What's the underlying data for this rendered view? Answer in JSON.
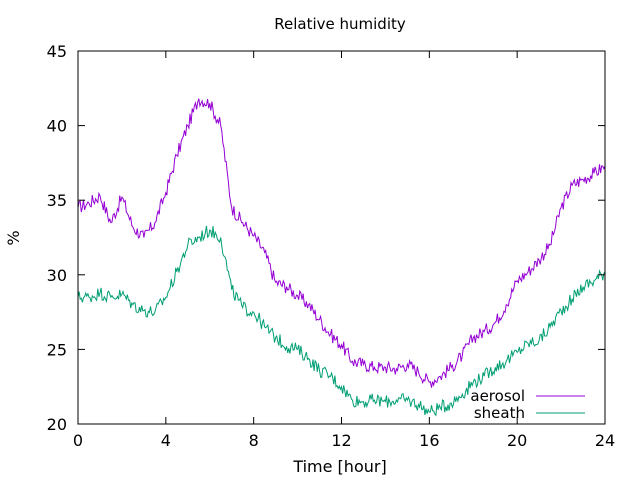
{
  "chart_data": {
    "type": "line",
    "title": "Relative humidity",
    "xlabel": "Time [hour]",
    "ylabel": "%",
    "xlim": [
      0,
      24
    ],
    "ylim": [
      20,
      45
    ],
    "xticks": [
      "0",
      "4",
      "8",
      "12",
      "16",
      "20",
      "24"
    ],
    "xtick_values": [
      0,
      4,
      8,
      12,
      16,
      20,
      24
    ],
    "yticks": [
      "20",
      "25",
      "30",
      "35",
      "40",
      "45"
    ],
    "ytick_values": [
      20,
      25,
      30,
      35,
      40,
      45
    ],
    "grid": false,
    "legend_position": "bottom-right",
    "x": [
      0,
      0.5,
      1,
      1.5,
      2,
      2.5,
      3,
      3.5,
      4,
      4.5,
      5,
      5.5,
      6,
      6.5,
      7,
      7.5,
      8,
      8.5,
      9,
      9.5,
      10,
      10.5,
      11,
      11.5,
      12,
      12.5,
      13,
      13.5,
      14,
      14.5,
      15,
      15.5,
      16,
      16.5,
      17,
      17.5,
      18,
      18.5,
      19,
      19.5,
      20,
      20.5,
      21,
      21.5,
      22,
      22.5,
      23,
      23.5,
      24
    ],
    "series": [
      {
        "name": "aerosol",
        "color": "#9400d3",
        "values": [
          34.5,
          34.8,
          35.3,
          33.5,
          35.2,
          33.2,
          32.5,
          33.5,
          35.5,
          38,
          40,
          41.8,
          41.5,
          40,
          34.5,
          33.5,
          32.6,
          31.5,
          29.5,
          29.2,
          28.6,
          28,
          27,
          26,
          25.3,
          24.2,
          24.0,
          23.8,
          23.8,
          23.7,
          24,
          23.5,
          22.8,
          23.2,
          23.8,
          24.6,
          25.8,
          26.2,
          26.8,
          28,
          29.6,
          30.2,
          31,
          32,
          34.5,
          36,
          36.4,
          36.8,
          37.3
        ]
      },
      {
        "name": "sheath",
        "color": "#009e73",
        "values": [
          28.5,
          28.5,
          28.8,
          28.5,
          28.7,
          28,
          27.6,
          27.5,
          28.5,
          30.2,
          32,
          32.5,
          33,
          32.5,
          29,
          27.8,
          27.5,
          26.5,
          25.8,
          25.2,
          25,
          24.4,
          23.6,
          23.2,
          22.5,
          21.6,
          21.5,
          21.6,
          21.5,
          21.6,
          21.6,
          21.3,
          20.8,
          21.1,
          21.4,
          22,
          22.8,
          23.2,
          23.8,
          24.2,
          24.8,
          25.4,
          25.6,
          26.5,
          27.6,
          28.4,
          29.2,
          29.6,
          30.2
        ]
      }
    ]
  }
}
